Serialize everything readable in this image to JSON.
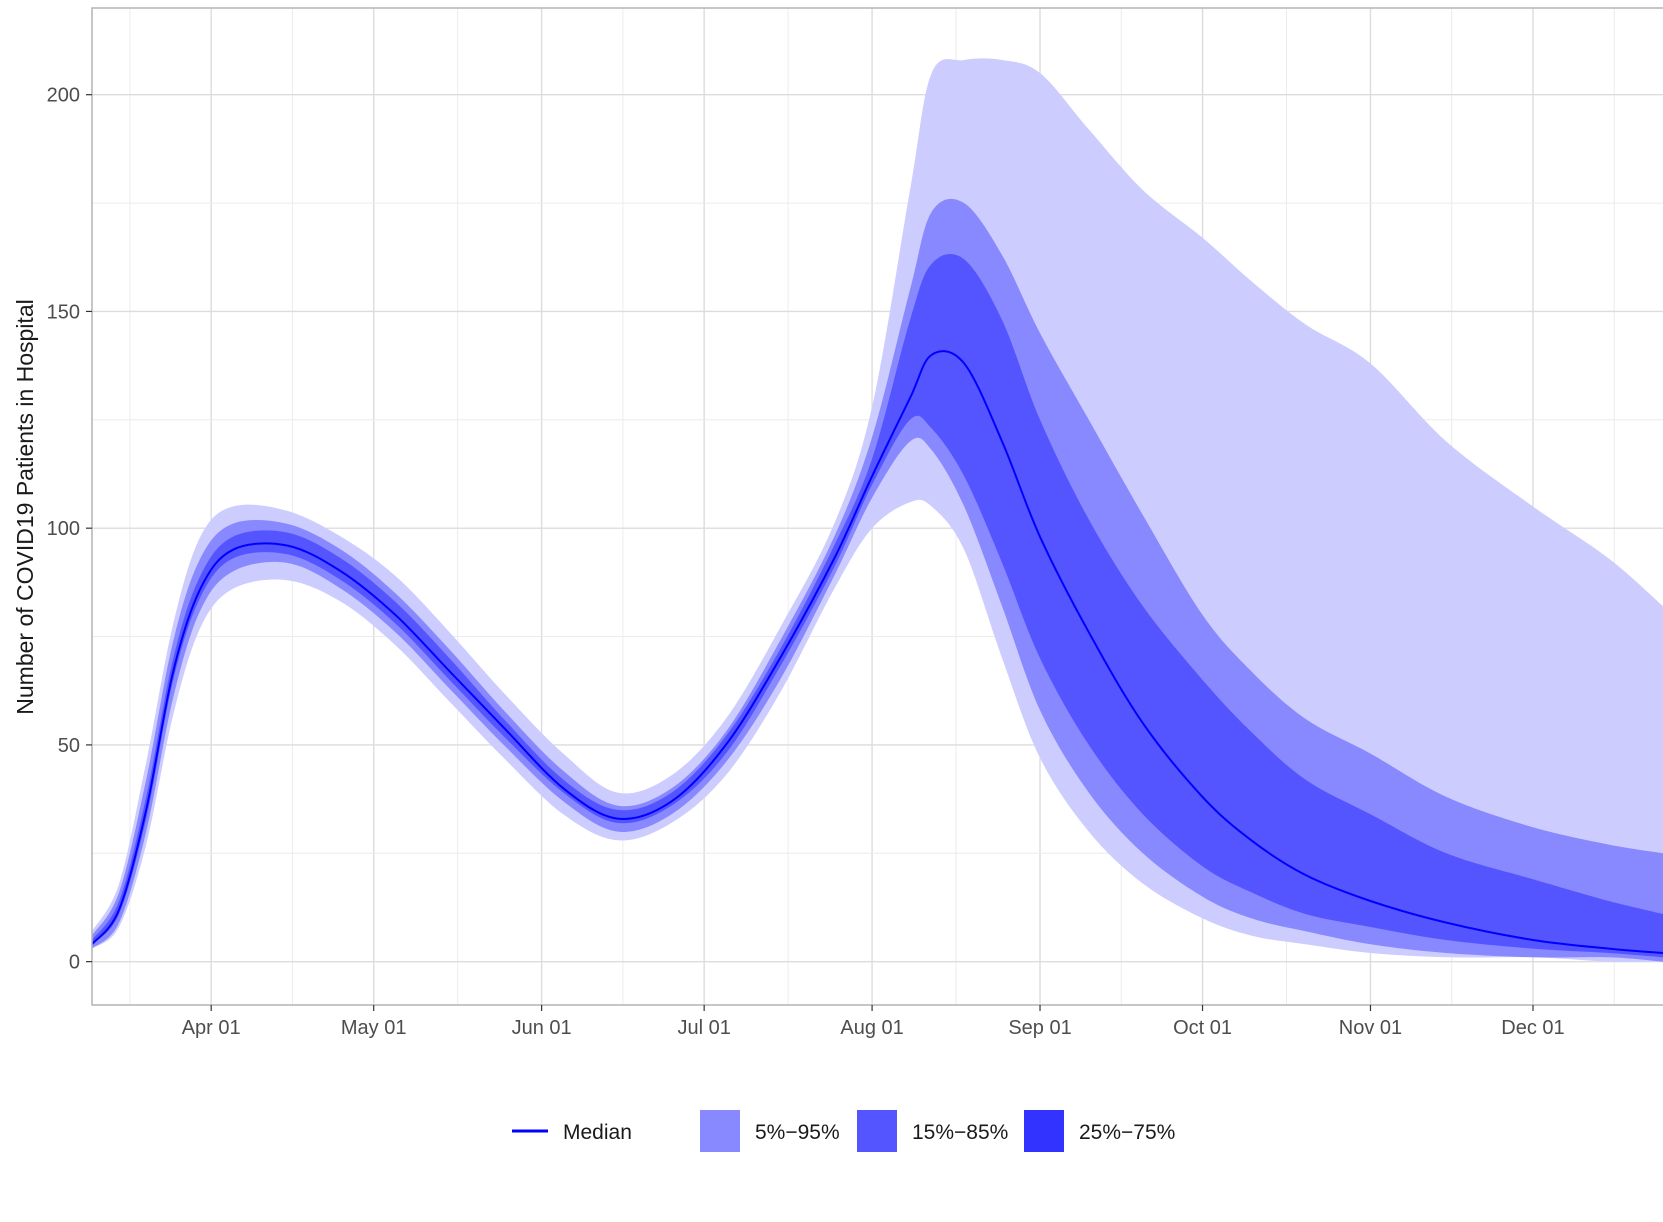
{
  "chart_data": {
    "type": "area",
    "title": "",
    "xlabel": "",
    "ylabel": "Number of COVID19 Patients in Hospital",
    "x_range": [
      "2020-03-10",
      "2020-12-25"
    ],
    "ylim": [
      -10,
      220
    ],
    "x_ticks": [
      {
        "date": "2020-04-01",
        "label": "Apr 01"
      },
      {
        "date": "2020-05-01",
        "label": "May 01"
      },
      {
        "date": "2020-06-01",
        "label": "Jun 01"
      },
      {
        "date": "2020-07-01",
        "label": "Jul 01"
      },
      {
        "date": "2020-08-01",
        "label": "Aug 01"
      },
      {
        "date": "2020-09-01",
        "label": "Sep 01"
      },
      {
        "date": "2020-10-01",
        "label": "Oct 01"
      },
      {
        "date": "2020-11-01",
        "label": "Nov 01"
      },
      {
        "date": "2020-12-01",
        "label": "Dec 01"
      }
    ],
    "y_ticks": [
      {
        "value": 0,
        "label": "0"
      },
      {
        "value": 50,
        "label": "50"
      },
      {
        "value": 100,
        "label": "100"
      },
      {
        "value": 150,
        "label": "150"
      },
      {
        "value": 200,
        "label": "200"
      }
    ],
    "grid": true,
    "legend_position": "bottom",
    "x": [
      "2020-03-10",
      "2020-03-15",
      "2020-03-20",
      "2020-03-25",
      "2020-03-30",
      "2020-04-05",
      "2020-04-15",
      "2020-04-25",
      "2020-05-05",
      "2020-05-15",
      "2020-05-25",
      "2020-06-05",
      "2020-06-15",
      "2020-06-25",
      "2020-07-05",
      "2020-07-15",
      "2020-07-25",
      "2020-08-01",
      "2020-08-08",
      "2020-08-12",
      "2020-08-18",
      "2020-08-25",
      "2020-09-01",
      "2020-09-10",
      "2020-09-20",
      "2020-10-01",
      "2020-10-10",
      "2020-10-20",
      "2020-11-01",
      "2020-11-15",
      "2020-12-01",
      "2020-12-15",
      "2020-12-25"
    ],
    "median": [
      4,
      12,
      35,
      67,
      86,
      95,
      96,
      90,
      80,
      67,
      54,
      40,
      33,
      37,
      50,
      70,
      93,
      112,
      130,
      140,
      138,
      120,
      98,
      76,
      55,
      38,
      28,
      20,
      14,
      9,
      5,
      3,
      2
    ],
    "bands": [
      {
        "name": "5%−95%",
        "color": "#ccccff",
        "lower": [
          3,
          8,
          27,
          57,
          77,
          86,
          88,
          83,
          73,
          60,
          47,
          34,
          28,
          32,
          43,
          62,
          86,
          100,
          106,
          105,
          95,
          70,
          47,
          30,
          18,
          10,
          6,
          4,
          2,
          1,
          1,
          0,
          0
        ],
        "upper": [
          7,
          18,
          46,
          78,
          98,
          105,
          104,
          98,
          89,
          76,
          62,
          48,
          39,
          43,
          56,
          77,
          101,
          128,
          178,
          205,
          208,
          208,
          205,
          192,
          178,
          167,
          157,
          147,
          138,
          120,
          105,
          93,
          82
        ]
      },
      {
        "name": "15%−85%",
        "color": "#8888ff",
        "lower": [
          3,
          9,
          30,
          61,
          81,
          90,
          92,
          86,
          76,
          63,
          50,
          37,
          30,
          34,
          46,
          65,
          89,
          107,
          120,
          118,
          105,
          82,
          58,
          39,
          25,
          15,
          10,
          7,
          4,
          2,
          1,
          1,
          0
        ],
        "upper": [
          6,
          16,
          42,
          74,
          93,
          101,
          101,
          95,
          85,
          72,
          58,
          44,
          36,
          40,
          53,
          74,
          98,
          121,
          155,
          173,
          175,
          163,
          145,
          125,
          103,
          80,
          67,
          56,
          48,
          38,
          31,
          27,
          25
        ]
      },
      {
        "name": "25%−75%",
        "color": "#5555ff",
        "lower": [
          4,
          11,
          33,
          65,
          84,
          93,
          94,
          88,
          78,
          65,
          52,
          39,
          32,
          36,
          48,
          68,
          91,
          110,
          125,
          123,
          112,
          92,
          70,
          50,
          34,
          22,
          16,
          11,
          8,
          5,
          3,
          2,
          1
        ],
        "upper": [
          5,
          14,
          38,
          70,
          89,
          98,
          99,
          93,
          83,
          70,
          56,
          42,
          35,
          39,
          52,
          72,
          96,
          116,
          148,
          161,
          162,
          148,
          125,
          102,
          82,
          65,
          53,
          42,
          34,
          25,
          19,
          14,
          11
        ]
      }
    ],
    "legend": [
      {
        "label": "Median",
        "color": "#0000ff",
        "kind": "line"
      },
      {
        "label": "5%−95%",
        "color": "#8888ff",
        "kind": "box"
      },
      {
        "label": "15%−85%",
        "color": "#5555ff",
        "kind": "box"
      },
      {
        "label": "25%−75%",
        "color": "#3333ff",
        "kind": "box"
      }
    ]
  }
}
